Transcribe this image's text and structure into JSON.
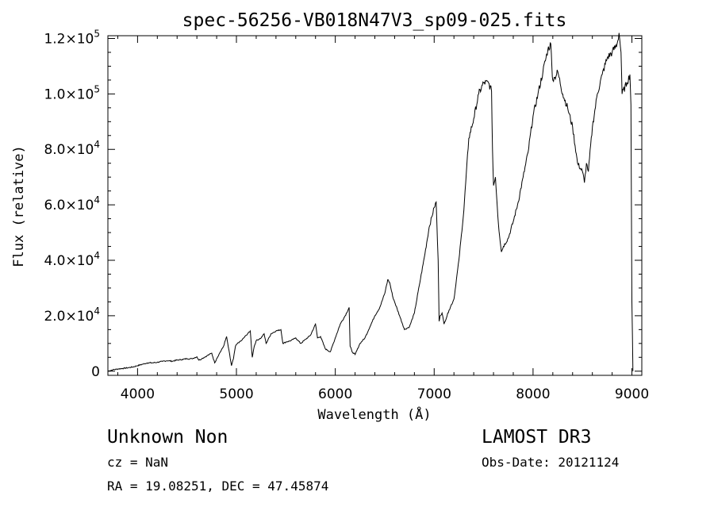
{
  "chart_data": {
    "type": "line",
    "title": "spec-56256-VB018N47V3_sp09-025.fits",
    "xlabel": "Wavelength (Å)",
    "ylabel": "Flux (relative)",
    "xlim": [
      3700,
      9100
    ],
    "ylim": [
      -1500,
      121000
    ],
    "x_ticks": [
      4000,
      5000,
      6000,
      7000,
      8000,
      9000
    ],
    "y_ticks": [
      {
        "value": 0,
        "label": "0",
        "mant": "",
        "exp": ""
      },
      {
        "value": 20000,
        "label": "2.0×10^4",
        "mant": "2.0×10",
        "exp": "4"
      },
      {
        "value": 40000,
        "label": "4.0×10^4",
        "mant": "4.0×10",
        "exp": "4"
      },
      {
        "value": 60000,
        "label": "6.0×10^4",
        "mant": "6.0×10",
        "exp": "4"
      },
      {
        "value": 80000,
        "label": "8.0×10^4",
        "mant": "8.0×10",
        "exp": "4"
      },
      {
        "value": 100000,
        "label": "1.0×10^5",
        "mant": "1.0×10",
        "exp": "5"
      },
      {
        "value": 120000,
        "label": "1.2×10^5",
        "mant": "1.2×10",
        "exp": "5"
      }
    ],
    "grid": false,
    "series": [
      {
        "name": "spectrum",
        "x": [
          3700,
          3750,
          3800,
          3850,
          3900,
          3950,
          4000,
          4050,
          4100,
          4150,
          4200,
          4250,
          4300,
          4350,
          4400,
          4450,
          4500,
          4550,
          4600,
          4620,
          4650,
          4700,
          4750,
          4780,
          4800,
          4830,
          4870,
          4900,
          4950,
          4970,
          4990,
          5010,
          5050,
          5100,
          5140,
          5160,
          5180,
          5200,
          5250,
          5280,
          5300,
          5350,
          5400,
          5450,
          5470,
          5500,
          5550,
          5600,
          5650,
          5700,
          5750,
          5800,
          5820,
          5850,
          5900,
          5950,
          6000,
          6050,
          6100,
          6140,
          6150,
          6170,
          6200,
          6250,
          6300,
          6350,
          6400,
          6450,
          6500,
          6530,
          6550,
          6580,
          6600,
          6650,
          6700,
          6750,
          6800,
          6850,
          6900,
          6950,
          7000,
          7020,
          7040,
          7050,
          7060,
          7080,
          7100,
          7150,
          7200,
          7250,
          7300,
          7350,
          7400,
          7450,
          7500,
          7550,
          7580,
          7590,
          7600,
          7620,
          7650,
          7680,
          7700,
          7750,
          7800,
          7850,
          7900,
          7950,
          8000,
          8050,
          8100,
          8150,
          8180,
          8190,
          8200,
          8220,
          8250,
          8300,
          8350,
          8400,
          8450,
          8500,
          8520,
          8540,
          8560,
          8600,
          8650,
          8700,
          8750,
          8800,
          8850,
          8870,
          8890,
          8900,
          8950,
          8980,
          8990,
          9000,
          9010
        ],
        "y": [
          0,
          500,
          800,
          1000,
          1200,
          1500,
          2000,
          2500,
          3000,
          3000,
          3200,
          3500,
          3800,
          3600,
          4000,
          4200,
          4500,
          4500,
          5200,
          4000,
          4500,
          5500,
          6500,
          3000,
          4500,
          6500,
          9000,
          12500,
          2000,
          4500,
          9000,
          10000,
          11000,
          13000,
          14500,
          5000,
          9000,
          11000,
          12000,
          13500,
          10000,
          13500,
          14500,
          15000,
          10000,
          10500,
          11000,
          12000,
          10000,
          11500,
          13000,
          17000,
          12000,
          12500,
          8000,
          7000,
          12000,
          17000,
          20000,
          23000,
          9000,
          7000,
          6000,
          10000,
          12000,
          16000,
          20000,
          23000,
          28000,
          33000,
          32000,
          27000,
          25000,
          20000,
          15000,
          16000,
          21000,
          31000,
          41000,
          52000,
          59000,
          61000,
          40000,
          18000,
          20000,
          21000,
          17000,
          22000,
          26000,
          40000,
          58000,
          84000,
          91000,
          100000,
          104000,
          104000,
          101000,
          80000,
          67000,
          70000,
          53000,
          43000,
          45000,
          48000,
          54000,
          61000,
          70000,
          79000,
          92000,
          100000,
          108000,
          116000,
          118000,
          110000,
          105000,
          106000,
          108000,
          100000,
          95000,
          88000,
          75000,
          72000,
          68000,
          75000,
          72000,
          88000,
          100000,
          107000,
          113000,
          115000,
          118000,
          122000,
          115000,
          100000,
          104000,
          107000,
          96000,
          25000,
          0
        ]
      }
    ],
    "header_left": "Unknown   Non",
    "cz": "cz = NaN",
    "coords": "RA =  19.08251, DEC =  47.45874",
    "header_right": "LAMOST DR3",
    "obs_date": "Obs-Date: 20121124"
  },
  "colors": {
    "foreground": "#000000",
    "background": "#ffffff"
  }
}
